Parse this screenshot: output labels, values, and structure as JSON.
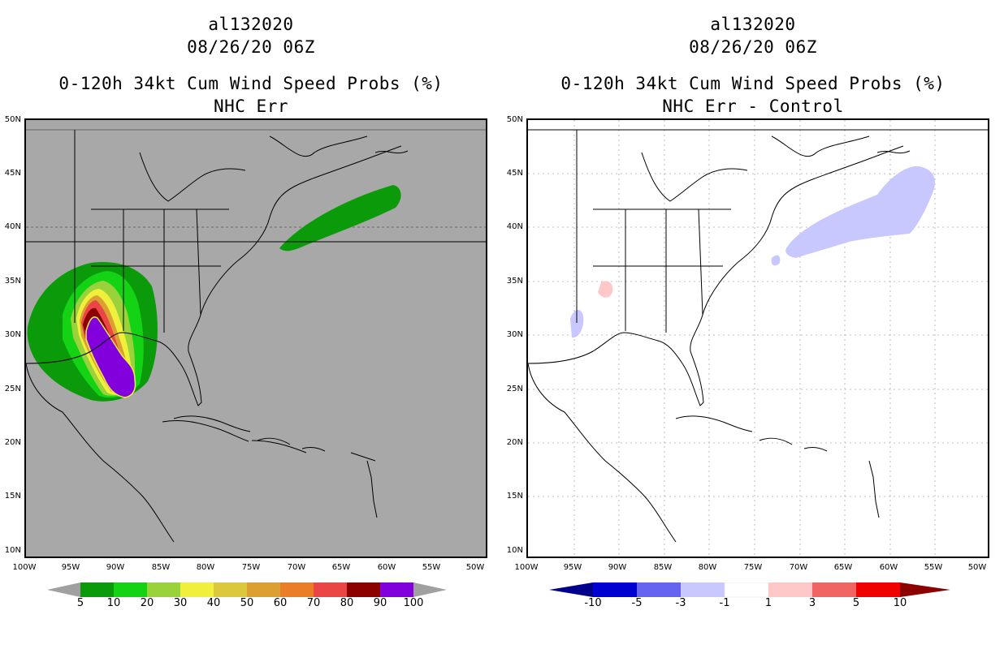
{
  "left": {
    "storm_id": "al132020",
    "datetime": "08/26/20 06Z",
    "title": "0-120h 34kt Cum Wind Speed Probs (%)",
    "subtitle": "NHC Err",
    "background": "#a8a8a8",
    "colorbar": {
      "labels": [
        "5",
        "10",
        "20",
        "30",
        "40",
        "50",
        "60",
        "70",
        "80",
        "90",
        "100"
      ],
      "colors": [
        "#0a9a0a",
        "#14d214",
        "#9ad23c",
        "#f0f03c",
        "#dcc83c",
        "#dca032",
        "#eb7d28",
        "#eb4646",
        "#8c0000",
        "#8200dc"
      ],
      "end_color": "#a0a0a0"
    }
  },
  "right": {
    "storm_id": "al132020",
    "datetime": "08/26/20 06Z",
    "title": "0-120h 34kt Cum Wind Speed Probs (%)",
    "subtitle": "NHC Err - Control",
    "background": "#ffffff",
    "colorbar": {
      "labels": [
        "-10",
        "-5",
        "-3",
        "-1",
        "1",
        "3",
        "5",
        "10"
      ],
      "colors": [
        "#0000d2",
        "#6464f0",
        "#c8c8ff",
        "#ffffff",
        "#ffc8c8",
        "#f06464",
        "#f00000"
      ],
      "end_low": "#00008c",
      "end_high": "#8c0000"
    }
  },
  "lat_labels": [
    "50N",
    "45N",
    "40N",
    "35N",
    "30N",
    "25N",
    "20N",
    "15N",
    "10N"
  ],
  "lon_labels": [
    "100W",
    "95W",
    "90W",
    "85W",
    "80W",
    "75W",
    "70W",
    "65W",
    "60W",
    "55W",
    "50W"
  ]
}
